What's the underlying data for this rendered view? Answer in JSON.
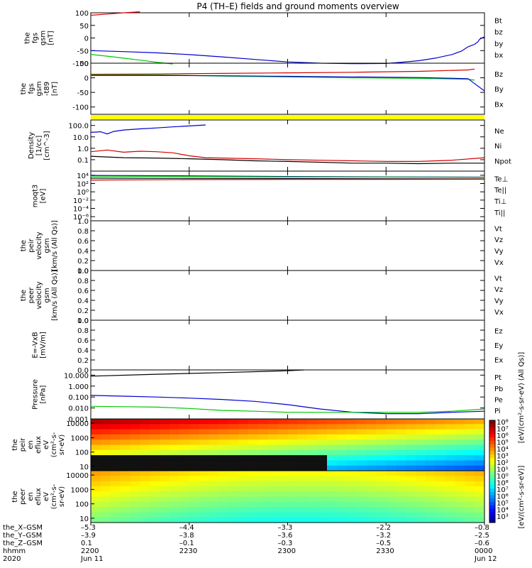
{
  "title": "P4 (TH–E) fields and ground moments overview",
  "colors": {
    "black": "#000000",
    "red": "#d40000",
    "green": "#00c800",
    "blue": "#0000d0",
    "yellow": "#ffff00"
  },
  "chart_data": {
    "type": "line",
    "time_axis": {
      "start": "2020-06-11 22:00",
      "end": "2020-06-12 00:00",
      "unit": "minutes since 2200"
    },
    "panels": [
      {
        "id": "fgs_gsm",
        "ylabel": [
          "the",
          "fgs",
          "gsm",
          "[nT]"
        ],
        "ylim": [
          -100,
          100
        ],
        "yticks": [
          "100",
          "50",
          "0",
          "-50",
          "-100"
        ],
        "yvals": [
          100,
          50,
          0,
          -50,
          -100
        ],
        "scale": "linear",
        "legend": [
          {
            "label": "Bt",
            "color": "black"
          },
          {
            "label": "bz",
            "color": "red"
          },
          {
            "label": "by",
            "color": "green"
          },
          {
            "label": "bx",
            "color": "blue"
          }
        ],
        "series": [
          {
            "name": "bz",
            "color": "red",
            "x": [
              0,
              5,
              10,
              15
            ],
            "y": [
              90,
              95,
              100,
              104
            ]
          },
          {
            "name": "by",
            "color": "green",
            "x": [
              0,
              5,
              10,
              15,
              20,
              25
            ],
            "y": [
              -65,
              -72,
              -80,
              -88,
              -96,
              -103
            ]
          },
          {
            "name": "bx",
            "color": "blue",
            "x": [
              0,
              10,
              20,
              30,
              40,
              50,
              60,
              70,
              80,
              90,
              95,
              100,
              105,
              110,
              113,
              115,
              117,
              118,
              118.5,
              120
            ],
            "y": [
              -50,
              -54,
              -59,
              -66,
              -75,
              -85,
              -95,
              -100,
              -102,
              -101,
              -96,
              -90,
              -80,
              -66,
              -52,
              -35,
              -25,
              -15,
              -5,
              5
            ]
          }
        ]
      },
      {
        "id": "fgs_gsm_rot",
        "ylabel": [
          "the",
          "fgs",
          "gsm",
          "-t89",
          "[nT]"
        ],
        "ylim": [
          -125,
          50
        ],
        "yticks": [
          "50",
          "0",
          "-50",
          "-100"
        ],
        "yvals": [
          50,
          0,
          -50,
          -100
        ],
        "scale": "linear",
        "legend": [
          {
            "label": "Bz",
            "color": "red"
          },
          {
            "label": "By",
            "color": "green"
          },
          {
            "label": "Bx",
            "color": "blue"
          }
        ],
        "series": [
          {
            "name": "Bz",
            "color": "red",
            "x": [
              0,
              20,
              40,
              60,
              80,
              100,
              115,
              117
            ],
            "y": [
              12,
              13,
              15,
              17,
              19,
              22,
              27,
              30
            ]
          },
          {
            "name": "By",
            "color": "green",
            "x": [
              0,
              20,
              40,
              60,
              80,
              100,
              115,
              117
            ],
            "y": [
              10,
              10,
              6,
              3,
              0,
              -2,
              -5,
              -8
            ]
          },
          {
            "name": "Bx",
            "color": "blue",
            "x": [
              0,
              20,
              40,
              60,
              80,
              100,
              115,
              117,
              120
            ],
            "y": [
              8,
              8,
              7,
              5,
              3,
              1,
              -3,
              -20,
              -45
            ]
          }
        ]
      },
      {
        "id": "density",
        "ylabel": [
          "Density",
          "[1/cc]",
          "[cm^-3]"
        ],
        "ylim": [
          0.01,
          300
        ],
        "yticks": [
          "100.0",
          "10.0",
          "1.0",
          "0.1"
        ],
        "yvals": [
          100,
          10,
          1,
          0.1
        ],
        "scale": "log",
        "legend": [
          {
            "label": "Ne",
            "color": "red"
          },
          {
            "label": "Ni",
            "color": "black"
          },
          {
            "label": "Npot",
            "color": "blue"
          }
        ],
        "series": [
          {
            "name": "Npot",
            "color": "blue",
            "x": [
              0,
              3,
              5,
              7,
              10,
              15,
              20,
              25,
              30,
              35
            ],
            "y": [
              25,
              28,
              18,
              30,
              40,
              50,
              60,
              75,
              90,
              110
            ]
          },
          {
            "name": "Ne",
            "color": "red",
            "x": [
              0,
              5,
              10,
              15,
              20,
              25,
              30,
              35,
              40,
              50,
              60,
              70,
              80,
              90,
              100,
              110,
              120
            ],
            "y": [
              0.5,
              0.7,
              0.45,
              0.55,
              0.5,
              0.4,
              0.22,
              0.15,
              0.14,
              0.12,
              0.1,
              0.09,
              0.08,
              0.07,
              0.07,
              0.09,
              0.15
            ]
          },
          {
            "name": "Ni",
            "color": "black",
            "x": [
              0,
              10,
              20,
              30,
              40,
              50,
              60,
              70,
              80,
              90,
              100,
              110,
              120
            ],
            "y": [
              0.2,
              0.15,
              0.14,
              0.12,
              0.1,
              0.08,
              0.07,
              0.06,
              0.05,
              0.05,
              0.045,
              0.05,
              0.05
            ]
          }
        ]
      },
      {
        "id": "temperature",
        "ylabel": [
          "moqt3",
          "[eV]"
        ],
        "ylim": [
          1e-07,
          100000
        ],
        "yticks": [
          "10⁴",
          "10²",
          "10⁰",
          "10⁻²",
          "10⁻⁴",
          "10⁻⁶"
        ],
        "yvals": [
          10000,
          100,
          1,
          0.01,
          0.0001,
          1e-06
        ],
        "scale": "log",
        "legend": [
          {
            "label": "Te⊥",
            "color": "red"
          },
          {
            "label": "Te||",
            "color": "black"
          },
          {
            "label": "Ti⊥",
            "color": "blue"
          },
          {
            "label": "Ti||",
            "color": "green"
          }
        ],
        "series": [
          {
            "name": "Ti⊥",
            "color": "blue",
            "x": [
              0,
              30,
              60,
              90,
              120
            ],
            "y": [
              9000,
              7000,
              5000,
              4000,
              3500
            ]
          },
          {
            "name": "Ti||",
            "color": "green",
            "x": [
              0,
              30,
              60,
              90,
              120
            ],
            "y": [
              6000,
              5000,
              4000,
              3500,
              3000
            ]
          },
          {
            "name": "Te||",
            "color": "black",
            "x": [
              0,
              30,
              60,
              90,
              120
            ],
            "y": [
              2000,
              1800,
              1600,
              1400,
              1300
            ]
          },
          {
            "name": "Te⊥",
            "color": "red",
            "x": [
              0,
              30,
              60,
              90,
              120
            ],
            "y": [
              700,
              900,
              1000,
              1000,
              1100
            ]
          }
        ]
      },
      {
        "id": "peir_velocity",
        "ylabel": [
          "the",
          "peir",
          "velocity",
          "gsm",
          "[km/s (All Qs)]"
        ],
        "ylim": [
          0,
          1
        ],
        "yticks": [
          "1.0",
          "0.8",
          "0.6",
          "0.4",
          "0.2",
          "0.0"
        ],
        "yvals": [
          1,
          0.8,
          0.6,
          0.4,
          0.2,
          0
        ],
        "scale": "linear",
        "legend": [
          {
            "label": "Vt",
            "color": "black"
          },
          {
            "label": "Vz",
            "color": "red"
          },
          {
            "label": "Vy",
            "color": "green"
          },
          {
            "label": "Vx",
            "color": "blue"
          }
        ],
        "series": []
      },
      {
        "id": "peer_velocity",
        "ylabel": [
          "the",
          "peer",
          "velocity",
          "gsm",
          "[km/s (All Qs)]"
        ],
        "ylim": [
          0,
          1
        ],
        "yticks": [
          "1.0",
          "0.8",
          "0.6",
          "0.4",
          "0.2",
          "0.0"
        ],
        "yvals": [
          1,
          0.8,
          0.6,
          0.4,
          0.2,
          0
        ],
        "scale": "linear",
        "legend": [
          {
            "label": "Vt",
            "color": "black"
          },
          {
            "label": "Vz",
            "color": "red"
          },
          {
            "label": "Vy",
            "color": "green"
          },
          {
            "label": "Vx",
            "color": "blue"
          }
        ],
        "series": []
      },
      {
        "id": "efield",
        "ylabel": [
          "E=-VxB",
          "[mV/m]"
        ],
        "ylim": [
          0,
          1
        ],
        "yticks": [
          "1.0",
          "0.8",
          "0.6",
          "0.4",
          "0.2",
          "0.0"
        ],
        "yvals": [
          1,
          0.8,
          0.6,
          0.4,
          0.2,
          0
        ],
        "scale": "linear",
        "legend": [
          {
            "label": "Ez",
            "color": "red"
          },
          {
            "label": "Ey",
            "color": "green"
          },
          {
            "label": "Ex",
            "color": "blue"
          }
        ],
        "series": []
      },
      {
        "id": "pressure",
        "ylabel": [
          "Pressure",
          "[nPa]"
        ],
        "ylim": [
          0.001,
          30
        ],
        "yticks": [
          "10.000",
          "1.000",
          "0.100",
          "0.010",
          "0.001"
        ],
        "yvals": [
          10,
          1,
          0.1,
          0.01,
          0.001
        ],
        "scale": "log",
        "legend": [
          {
            "label": "Pt",
            "color": "black"
          },
          {
            "label": "Pb",
            "color": "red"
          },
          {
            "label": "Pe",
            "color": "green"
          },
          {
            "label": "Pi",
            "color": "blue"
          }
        ],
        "series": [
          {
            "name": "Pt",
            "color": "black",
            "x": [
              0,
              20,
              40,
              60,
              65
            ],
            "y": [
              8,
              12,
              17,
              25,
              30
            ]
          },
          {
            "name": "Pi",
            "color": "blue",
            "x": [
              0,
              10,
              20,
              30,
              40,
              50,
              60,
              70,
              80,
              90,
              100,
              110,
              120
            ],
            "y": [
              0.14,
              0.12,
              0.1,
              0.08,
              0.06,
              0.04,
              0.02,
              0.008,
              0.004,
              0.003,
              0.003,
              0.004,
              0.005
            ]
          },
          {
            "name": "Pe",
            "color": "green",
            "x": [
              0,
              10,
              20,
              30,
              40,
              50,
              60,
              70,
              80,
              90,
              100,
              110,
              120
            ],
            "y": [
              0.014,
              0.013,
              0.012,
              0.009,
              0.006,
              0.005,
              0.004,
              0.004,
              0.004,
              0.004,
              0.004,
              0.005,
              0.008
            ]
          }
        ]
      }
    ],
    "spectrograms": [
      {
        "id": "peir_en_eflux",
        "ylabel": [
          "the",
          "peir",
          "en",
          "eflux",
          "eV",
          "(cm²-s-",
          "sr-eV)"
        ],
        "yticks": [
          "10000",
          "1000",
          "100",
          "10"
        ],
        "yvals": [
          10000,
          1000,
          100,
          10
        ]
      },
      {
        "id": "peer_en_eflux",
        "ylabel": [
          "the",
          "peer",
          "en",
          "eflux",
          "eV",
          "(cm²-s-",
          "sr-eV)"
        ],
        "yticks": [
          "10000",
          "1000",
          "100",
          "10"
        ],
        "yvals": [
          10000,
          1000,
          100,
          10
        ]
      }
    ],
    "colorbar": {
      "ticks": [
        "10⁸",
        "10⁷",
        "10⁶",
        "10⁵",
        "10⁴",
        "10³",
        "10²",
        "10¹",
        "10⁰",
        "10⁸",
        "10⁷",
        "10⁶",
        "10⁵",
        "10⁴",
        "10³"
      ],
      "label": "[eV/(cm²-s-sr-eV)]",
      "label2": "[eV/(cm²-s-sr-eV) (All Qs)]"
    },
    "x_axis_rows": {
      "labels": [
        "the_X–GSM",
        "the_Y–GSM",
        "the_Z–GSM",
        "hhmm",
        "2020"
      ],
      "ticks": [
        {
          "x": 0,
          "vals": [
            "–5.3",
            "–3.9",
            "0.1",
            "2200",
            "Jun 11"
          ]
        },
        {
          "x": 30,
          "vals": [
            "–4.4",
            "–3.8",
            "–0.1",
            "2230",
            ""
          ]
        },
        {
          "x": 60,
          "vals": [
            "–3.3",
            "–3.6",
            "–0.3",
            "2300",
            ""
          ]
        },
        {
          "x": 90,
          "vals": [
            "–2.2",
            "–3.2",
            "–0.5",
            "2330",
            ""
          ]
        },
        {
          "x": 120,
          "vals": [
            "–0.8",
            "–2.5",
            "–0.6",
            "0000",
            "Jun 12"
          ]
        }
      ]
    }
  }
}
